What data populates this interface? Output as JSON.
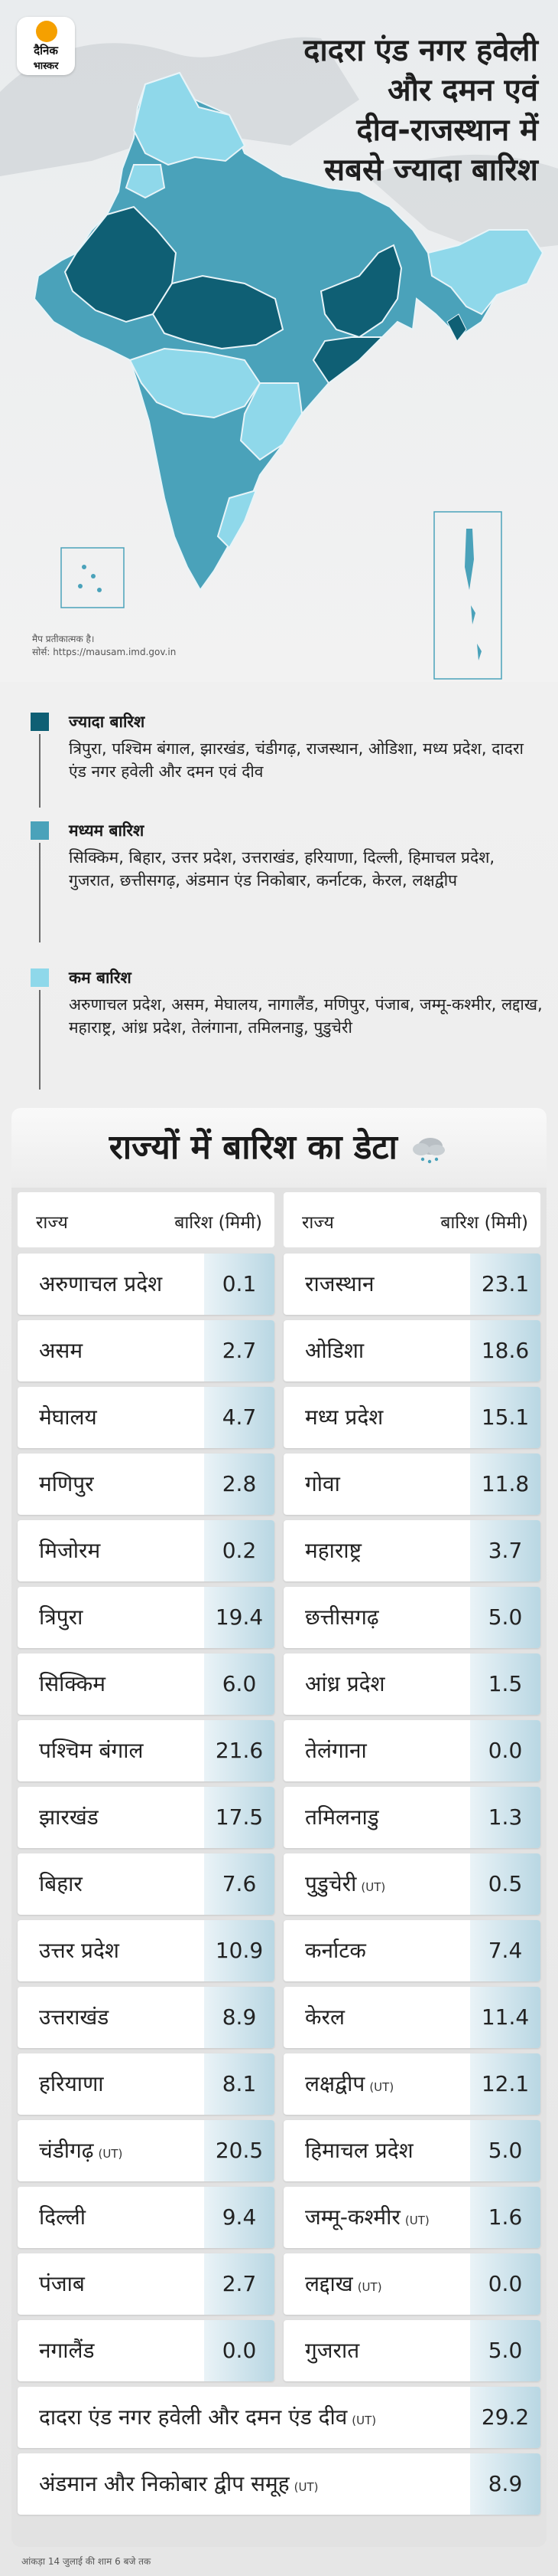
{
  "brand": {
    "line1": "दैनिक",
    "line2": "भास्कर"
  },
  "headline": [
    "दादरा एंड नगर हवेली",
    "और दमन एवं",
    "दीव-राजस्थान में",
    "सबसे ज्यादा बारिश"
  ],
  "map_note": {
    "line1": "मैप प्रतीकात्मक है।",
    "line2": "सोर्स: https://mausam.imd.gov.in"
  },
  "colors": {
    "high": "#0f5f74",
    "medium": "#4aa2ba",
    "low": "#8fd8ea",
    "accent": "#f5a000"
  },
  "legend": [
    {
      "title": "ज्यादा बारिश",
      "text": "त्रिपुरा, पश्चिम बंगाल, झारखंड, चंडीगढ़, राजस्थान, ओडिशा, मध्य प्रदेश, दादरा एंड नगर हवेली और दमन एवं दीव"
    },
    {
      "title": "मध्यम बारिश",
      "text": "सिक्किम, बिहार, उत्तर प्रदेश, उत्तराखंड, हरियाणा, दिल्ली, हिमाचल प्रदेश, गुजरात, छत्तीसगढ़, अंडमान एंड निकोबार, कर्नाटक, केरल, लक्षद्वीप"
    },
    {
      "title": "कम बारिश",
      "text": "अरुणाचल प्रदेश, असम, मेघालय, नागालैंड, मणिपुर, पंजाब, जम्मू-कश्मीर, लद्दाख, महाराष्ट्र, आंध्र प्रदेश, तेलंगाना, तमिलनाडु, पुडुचेरी"
    }
  ],
  "table": {
    "title": "राज्यों में बारिश का डेटा",
    "col_state": "राज्य",
    "col_rain": "बारिश (मिमी)",
    "ut_tag": "(UT)",
    "left": [
      {
        "name": "अरुणाचल प्रदेश",
        "value": "0.1"
      },
      {
        "name": "असम",
        "value": "2.7"
      },
      {
        "name": "मेघालय",
        "value": "4.7"
      },
      {
        "name": "मणिपुर",
        "value": "2.8"
      },
      {
        "name": "मिजोरम",
        "value": "0.2"
      },
      {
        "name": "त्रिपुरा",
        "value": "19.4"
      },
      {
        "name": "सिक्किम",
        "value": "6.0"
      },
      {
        "name": "पश्चिम बंगाल",
        "value": "21.6"
      },
      {
        "name": "झारखंड",
        "value": "17.5"
      },
      {
        "name": "बिहार",
        "value": "7.6"
      },
      {
        "name": "उत्तर प्रदेश",
        "value": "10.9"
      },
      {
        "name": "उत्तराखंड",
        "value": "8.9"
      },
      {
        "name": "हरियाणा",
        "value": "8.1"
      },
      {
        "name": "चंडीगढ़",
        "value": "20.5",
        "ut": true
      },
      {
        "name": "दिल्ली",
        "value": "9.4"
      },
      {
        "name": "पंजाब",
        "value": "2.7"
      },
      {
        "name": "नगालैंड",
        "value": "0.0"
      }
    ],
    "right": [
      {
        "name": "राजस्थान",
        "value": "23.1"
      },
      {
        "name": "ओडिशा",
        "value": "18.6"
      },
      {
        "name": "मध्य प्रदेश",
        "value": "15.1"
      },
      {
        "name": "गोवा",
        "value": "11.8"
      },
      {
        "name": "महाराष्ट्र",
        "value": "3.7"
      },
      {
        "name": "छत्तीसगढ़",
        "value": "5.0"
      },
      {
        "name": "आंध्र प्रदेश",
        "value": "1.5"
      },
      {
        "name": "तेलंगाना",
        "value": "0.0"
      },
      {
        "name": "तमिलनाडु",
        "value": "1.3"
      },
      {
        "name": "पुडुचेरी",
        "value": "0.5",
        "ut": true
      },
      {
        "name": "कर्नाटक",
        "value": "7.4"
      },
      {
        "name": "केरल",
        "value": "11.4"
      },
      {
        "name": "लक्षद्वीप",
        "value": "12.1",
        "ut": true
      },
      {
        "name": "हिमाचल प्रदेश",
        "value": "5.0"
      },
      {
        "name": "जम्मू-कश्मीर",
        "value": "1.6",
        "ut": true
      },
      {
        "name": "लद्दाख",
        "value": "0.0",
        "ut": true
      },
      {
        "name": "गुजरात",
        "value": "5.0"
      }
    ],
    "full": [
      {
        "name": "दादरा एंड नगर हवेली और दमन एंड दीव",
        "value": "29.2",
        "ut": true
      },
      {
        "name": "अंडमान और निकोबार द्वीप समूह",
        "value": "8.9",
        "ut": true
      }
    ]
  },
  "footer": "आंकड़ा 14 जुलाई की शाम 6 बजे तक"
}
